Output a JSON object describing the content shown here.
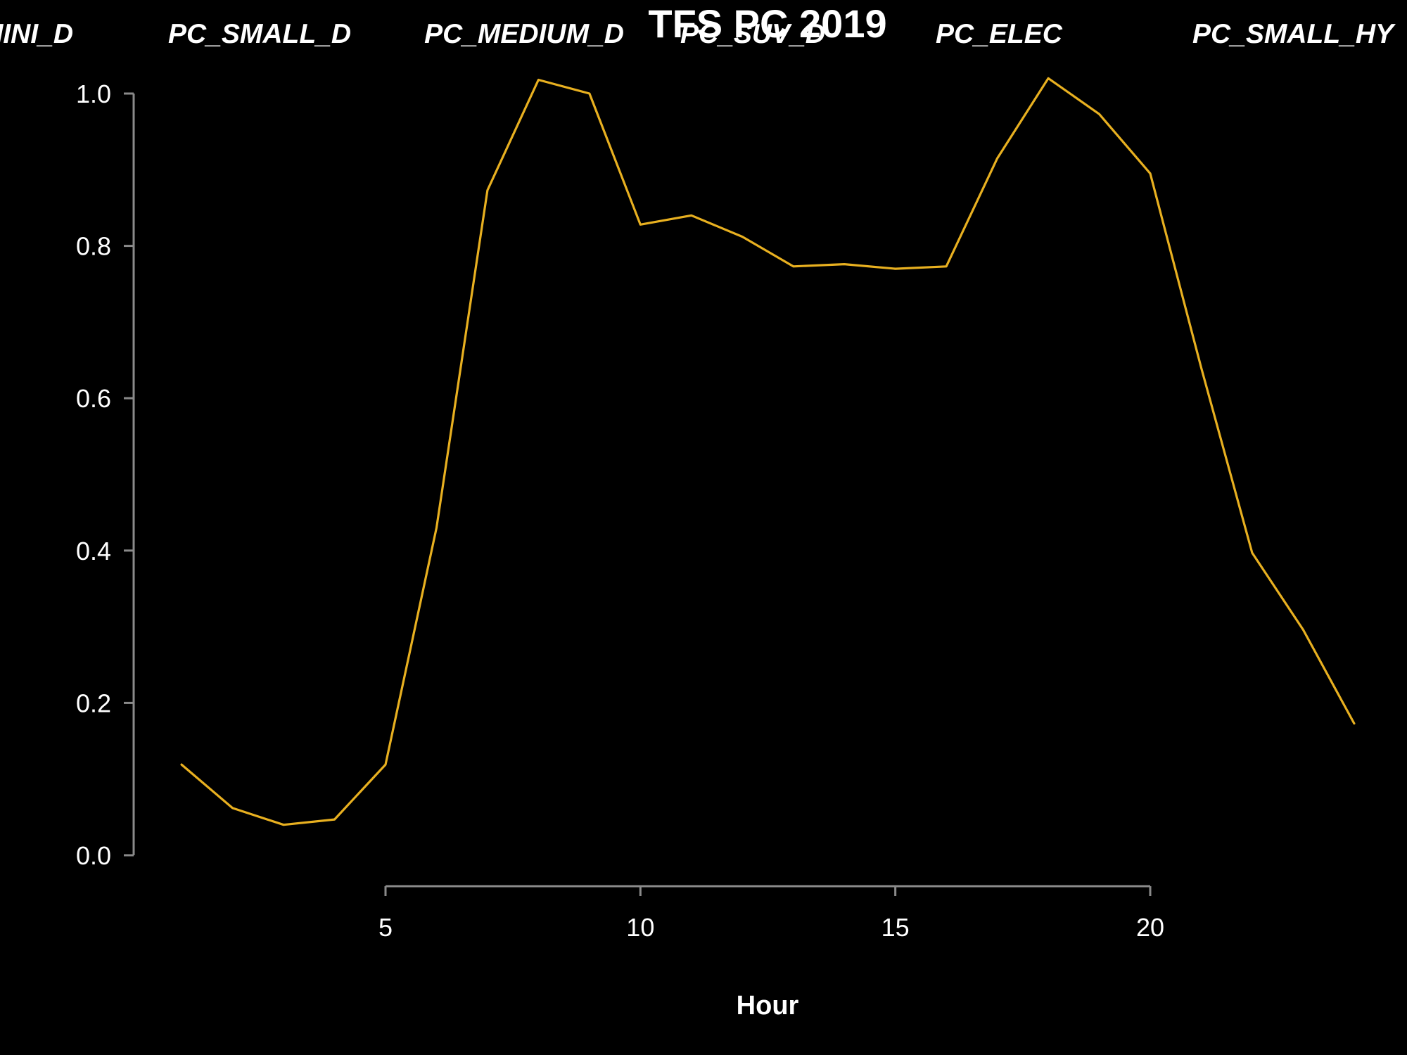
{
  "chart_data": {
    "type": "line",
    "title": "TFS PC 2019",
    "xlabel": "Hour",
    "ylabel": "",
    "xlim": [
      1,
      24
    ],
    "ylim": [
      0,
      1.0
    ],
    "x_ticks": [
      "5",
      "10",
      "15",
      "20"
    ],
    "y_ticks": [
      "0.0",
      "0.2",
      "0.4",
      "0.6",
      "0.8",
      "1.0"
    ],
    "top_labels": [
      "PC_MINI_D",
      "PC_SMALL_D",
      "PC_MEDIUM_D",
      "PC_SUV_D",
      "PC_ELEC",
      "PC_SMALL_HY"
    ],
    "grid": false,
    "legend": "none",
    "series": [
      {
        "color": "#e8b020",
        "x": [
          1,
          2,
          3,
          4,
          5,
          6,
          7,
          8,
          9,
          10,
          11,
          12,
          13,
          14,
          15,
          16,
          17,
          18,
          19,
          20,
          21,
          22,
          23,
          24
        ],
        "values": [
          0.119,
          0.062,
          0.04,
          0.047,
          0.119,
          0.43,
          0.873,
          1.018,
          1.0,
          0.828,
          0.84,
          0.812,
          0.773,
          0.776,
          0.77,
          0.773,
          0.915,
          1.02,
          0.973,
          0.895,
          0.64,
          0.397,
          0.296,
          0.173
        ]
      }
    ]
  }
}
